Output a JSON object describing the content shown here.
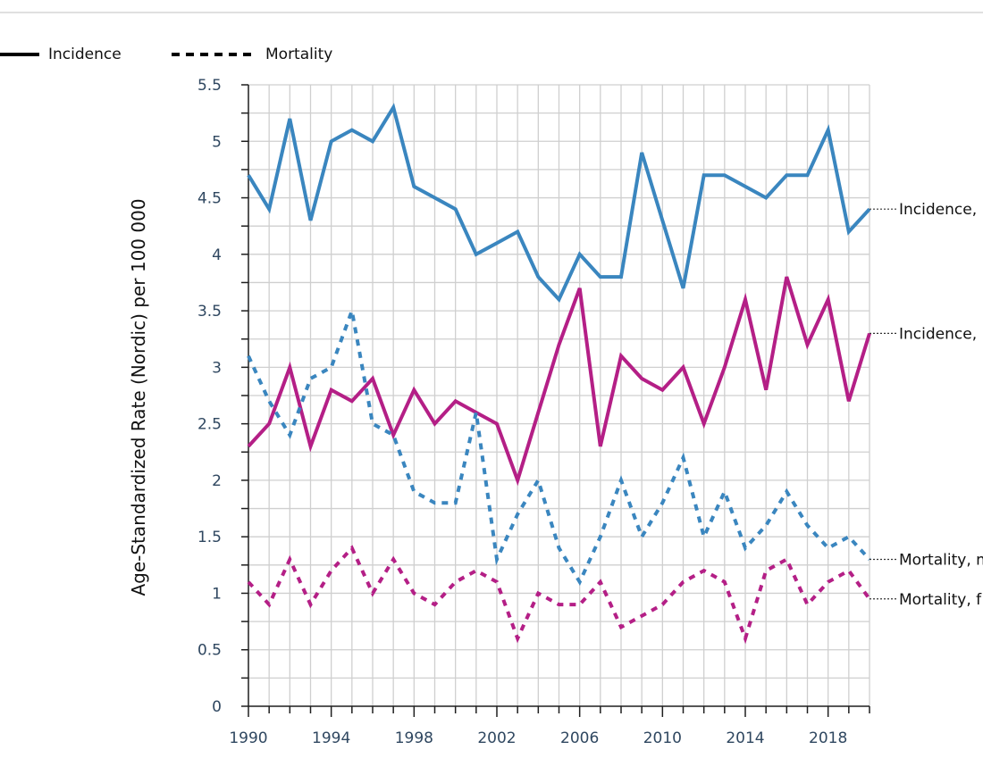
{
  "chart_data": {
    "type": "line",
    "title": "",
    "xlabel": "",
    "ylabel": "Age-Standardized Rate (Nordic) per 100 000",
    "xlim": [
      1990,
      2020
    ],
    "ylim": [
      0,
      5.5
    ],
    "x_ticks": [
      1990,
      1994,
      1998,
      2002,
      2006,
      2010,
      2014,
      2018
    ],
    "y_ticks": [
      0,
      0.5,
      1,
      1.5,
      2,
      2.5,
      3,
      3.5,
      4,
      4.5,
      5,
      5.5
    ],
    "y_tick_labels": [
      "0",
      "0.5",
      "1",
      "1.5",
      "2",
      "2.5",
      "3",
      "3.5",
      "4",
      "4.5",
      "5",
      "5.5"
    ],
    "grid": true,
    "legend": {
      "placement": "top-left",
      "items": [
        {
          "label": "Incidence",
          "style": "solid"
        },
        {
          "label": "Mortality",
          "style": "dotted"
        }
      ]
    },
    "x": [
      1990,
      1991,
      1992,
      1993,
      1994,
      1995,
      1996,
      1997,
      1998,
      1999,
      2000,
      2001,
      2002,
      2003,
      2004,
      2005,
      2006,
      2007,
      2008,
      2009,
      2010,
      2011,
      2012,
      2013,
      2014,
      2015,
      2016,
      2017,
      2018,
      2019,
      2020
    ],
    "series": [
      {
        "name": "Incidence,",
        "end_label": "Incidence,",
        "color": "#3a86bf",
        "style": "solid",
        "values": [
          4.7,
          4.4,
          5.2,
          4.3,
          5.0,
          5.1,
          5.0,
          5.3,
          4.6,
          4.5,
          4.4,
          4.0,
          4.1,
          4.2,
          3.8,
          3.6,
          4.0,
          3.8,
          3.8,
          4.9,
          4.3,
          3.7,
          4.7,
          4.7,
          4.6,
          4.5,
          4.7,
          4.7,
          5.1,
          4.2,
          4.4
        ]
      },
      {
        "name": "Incidence,",
        "end_label": "Incidence,",
        "color": "#b41f86",
        "style": "solid",
        "values": [
          2.3,
          2.5,
          3.0,
          2.3,
          2.8,
          2.7,
          2.9,
          2.4,
          2.8,
          2.5,
          2.7,
          2.6,
          2.5,
          2.0,
          2.6,
          3.2,
          3.7,
          2.3,
          3.1,
          2.9,
          2.8,
          3.0,
          2.5,
          3.0,
          3.6,
          2.8,
          3.8,
          3.2,
          3.6,
          2.7,
          3.3
        ]
      },
      {
        "name": "Mortality, m",
        "end_label": "Mortality, m",
        "color": "#3a86bf",
        "style": "dotted",
        "values": [
          3.1,
          2.7,
          2.4,
          2.9,
          3.0,
          3.5,
          2.5,
          2.4,
          1.9,
          1.8,
          1.8,
          2.6,
          1.3,
          1.7,
          2.0,
          1.4,
          1.1,
          1.5,
          2.0,
          1.5,
          1.8,
          2.2,
          1.5,
          1.9,
          1.4,
          1.6,
          1.9,
          1.6,
          1.4,
          1.5,
          1.3
        ]
      },
      {
        "name": "Mortality, f",
        "end_label": "Mortality, f",
        "color": "#b41f86",
        "style": "dotted",
        "values": [
          1.1,
          0.9,
          1.3,
          0.9,
          1.2,
          1.4,
          1.0,
          1.3,
          1.0,
          0.9,
          1.1,
          1.2,
          1.1,
          0.6,
          1.0,
          0.9,
          0.9,
          1.1,
          0.7,
          0.8,
          0.9,
          1.1,
          1.2,
          1.1,
          0.6,
          1.2,
          1.3,
          0.9,
          1.1,
          1.2,
          0.95
        ]
      }
    ]
  }
}
